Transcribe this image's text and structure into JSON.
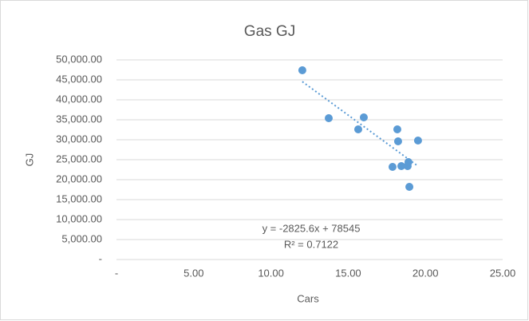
{
  "chart_data": {
    "type": "scatter",
    "title": "Gas GJ",
    "x_label": "Cars",
    "y_label": "GJ",
    "series": [
      {
        "color": "#5b9bd5",
        "x": [
          12.03,
          13.74,
          15.65,
          16.01,
          18.18,
          18.23,
          19.52,
          17.87,
          18.44,
          18.85,
          18.9,
          18.96
        ],
        "values": [
          47400,
          35400,
          32600,
          35600,
          32600,
          29600,
          29800,
          23200,
          23400,
          23400,
          24400,
          18200
        ]
      }
    ],
    "trendline": {
      "label": "y = -2825.6x + 78545",
      "r2_label": "R² = 0.7122",
      "slope": -2825.6,
      "intercept": 78545,
      "color": "#5b9bd5"
    },
    "xlim": [
      0,
      25
    ],
    "xticks": [
      {
        "value": 0,
        "label": "-"
      },
      {
        "value": 5,
        "label": "5.00"
      },
      {
        "value": 10,
        "label": "10.00"
      },
      {
        "value": 15,
        "label": "15.00"
      },
      {
        "value": 20,
        "label": "20.00"
      },
      {
        "value": 25,
        "label": "25.00"
      }
    ],
    "ylim": [
      0,
      50000
    ],
    "yticks": [
      {
        "value": 0,
        "label": "-"
      },
      {
        "value": 5000,
        "label": "5,000.00"
      },
      {
        "value": 10000,
        "label": "10,000.00"
      },
      {
        "value": 15000,
        "label": "15,000.00"
      },
      {
        "value": 20000,
        "label": "20,000.00"
      },
      {
        "value": 25000,
        "label": "25,000.00"
      },
      {
        "value": 30000,
        "label": "30,000.00"
      },
      {
        "value": 35000,
        "label": "35,000.00"
      },
      {
        "value": 40000,
        "label": "40,000.00"
      },
      {
        "value": 45000,
        "label": "45,000.00"
      },
      {
        "value": 50000,
        "label": "50,000.00"
      }
    ],
    "grid": true
  }
}
